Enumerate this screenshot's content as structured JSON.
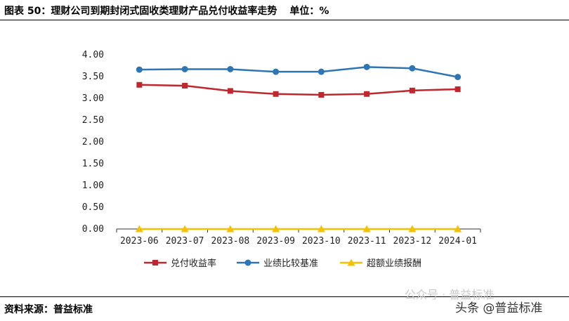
{
  "header": {
    "title": "图表 50：理财公司到期封闭式固收类理财产品兑付收益率走势",
    "unit": "单位：%"
  },
  "footer": {
    "source": "资料来源：普益标准",
    "watermark_light": "公众号 · 普益标准",
    "watermark": "头条 @普益标准"
  },
  "chart_data": {
    "type": "line",
    "title": "图表 50：理财公司到期封闭式固收类理财产品兑付收益率走势",
    "unit": "单位：%",
    "x": [
      "2023-06",
      "2023-07",
      "2023-08",
      "2023-09",
      "2023-10",
      "2023-11",
      "2023-12",
      "2024-01"
    ],
    "ylim": [
      0,
      4
    ],
    "yticks": [
      "4.00",
      "3.50",
      "3.00",
      "2.50",
      "2.00",
      "1.50",
      "1.00",
      "0.50",
      "0.00"
    ],
    "grid": false,
    "legend": "bottom",
    "series": [
      {
        "name": "兑付收益率",
        "color": "#c0262d",
        "marker": "square",
        "values": [
          3.31,
          3.29,
          3.17,
          3.1,
          3.08,
          3.1,
          3.18,
          3.21
        ]
      },
      {
        "name": "业绩比较基准",
        "color": "#2e75b6",
        "marker": "circle",
        "values": [
          3.66,
          3.67,
          3.67,
          3.61,
          3.61,
          3.72,
          3.69,
          3.49
        ]
      },
      {
        "name": "超额业绩报酬",
        "color": "#f5c100",
        "marker": "triangle",
        "values": [
          0.0,
          0.0,
          0.0,
          0.0,
          0.0,
          0.0,
          0.0,
          0.0
        ]
      }
    ]
  }
}
